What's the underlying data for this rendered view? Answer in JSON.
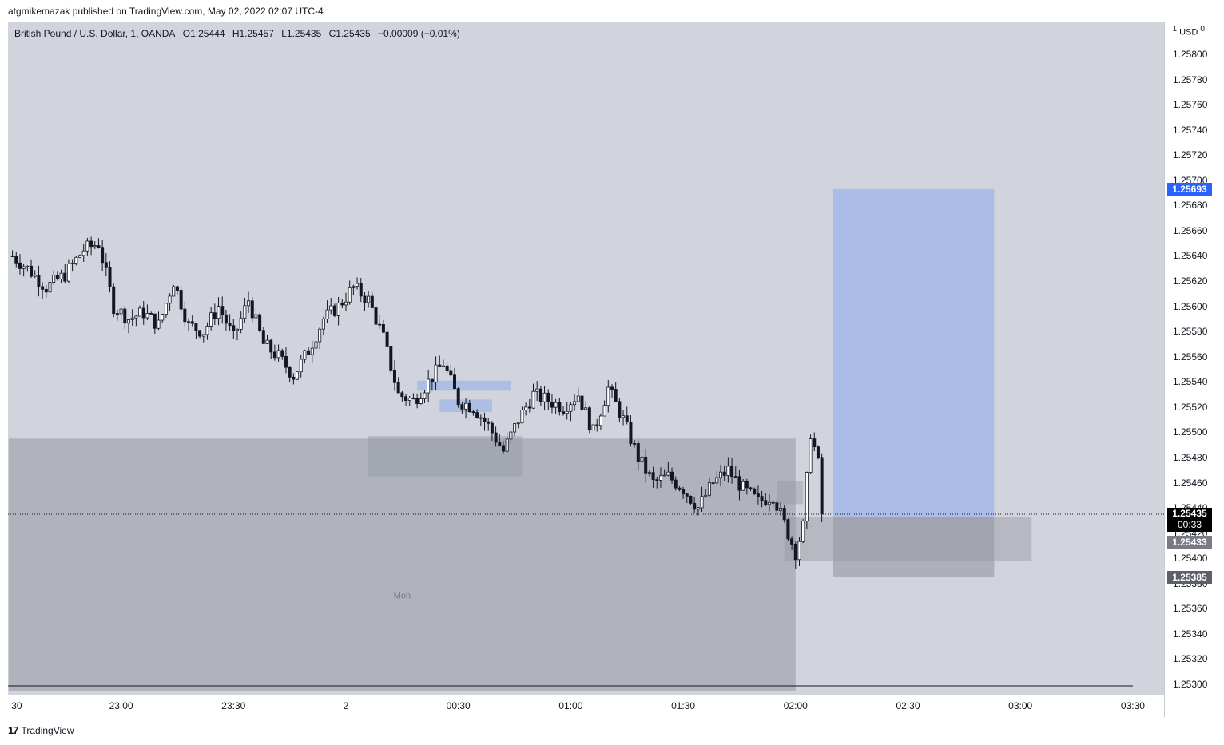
{
  "header": {
    "published_line": "atgmikemazak published on TradingView.com, May 02, 2022 02:07 UTC-4"
  },
  "legend": {
    "symbol": "British Pound / U.S. Dollar, 1, OANDA",
    "open": "O1.25444",
    "high": "H1.25457",
    "low": "L1.25435",
    "close": "C1.25435",
    "change": "−0.00009 (−0.01%)"
  },
  "price_axis": {
    "currency_prefix": "1",
    "currency": "USD",
    "currency_suffix": "0"
  },
  "price_labels": {
    "target": "1.25693",
    "current": "1.25435",
    "countdown": "00:33",
    "entry": "1.25433",
    "stop": "1.25385"
  },
  "session_label": "Mon",
  "footer": {
    "brand": "TradingView"
  },
  "colors": {
    "background": "#d1d4dc",
    "candle_up": "#ffffff",
    "candle_down": "#131722",
    "target_zone": "#a9bbe6",
    "stop_zone": "#9598a1",
    "target_label": "#2962ff",
    "current_label": "#000000",
    "grey_label": "#787b86"
  },
  "chart_data": {
    "type": "candlestick",
    "symbol": "GBPUSD",
    "timeframe": "1",
    "ylim": [
      1.2529,
      1.2581
    ],
    "y_ticks": [
      "1.25800",
      "1.25780",
      "1.25760",
      "1.25740",
      "1.25720",
      "1.25700",
      "1.25680",
      "1.25660",
      "1.25640",
      "1.25620",
      "1.25600",
      "1.25580",
      "1.25560",
      "1.25540",
      "1.25520",
      "1.25500",
      "1.25480",
      "1.25460",
      "1.25440",
      "1.25420",
      "1.25400",
      "1.25380",
      "1.25360",
      "1.25340",
      "1.25320",
      "1.25300"
    ],
    "x_ticks": [
      ":30",
      "23:00",
      "23:30",
      "2",
      "00:30",
      "01:00",
      "01:30",
      "02:00",
      "02:30",
      "03:00",
      "03:30"
    ],
    "x_tick_minutes": [
      -90,
      -60,
      -30,
      0,
      30,
      60,
      90,
      120,
      150,
      180,
      210
    ],
    "close_path": [
      [
        -89,
        1.2564
      ],
      [
        -85,
        1.2563
      ],
      [
        -80,
        1.25615
      ],
      [
        -75,
        1.25625
      ],
      [
        -70,
        1.25645
      ],
      [
        -66,
        1.2565
      ],
      [
        -62,
        1.256
      ],
      [
        -58,
        1.2559
      ],
      [
        -54,
        1.25595
      ],
      [
        -50,
        1.25585
      ],
      [
        -46,
        1.2562
      ],
      [
        -42,
        1.25585
      ],
      [
        -38,
        1.2558
      ],
      [
        -34,
        1.256
      ],
      [
        -30,
        1.25575
      ],
      [
        -26,
        1.25605
      ],
      [
        -22,
        1.2557
      ],
      [
        -18,
        1.2556
      ],
      [
        -14,
        1.25545
      ],
      [
        -10,
        1.25565
      ],
      [
        -6,
        1.2559
      ],
      [
        -2,
        1.256
      ],
      [
        2,
        1.25615
      ],
      [
        6,
        1.25605
      ],
      [
        10,
        1.25575
      ],
      [
        14,
        1.2553
      ],
      [
        18,
        1.25525
      ],
      [
        22,
        1.2554
      ],
      [
        26,
        1.25555
      ],
      [
        30,
        1.25525
      ],
      [
        34,
        1.2552
      ],
      [
        38,
        1.25505
      ],
      [
        42,
        1.25485
      ],
      [
        46,
        1.2551
      ],
      [
        50,
        1.2553
      ],
      [
        54,
        1.25525
      ],
      [
        58,
        1.2552
      ],
      [
        62,
        1.2553
      ],
      [
        66,
        1.255
      ],
      [
        70,
        1.25535
      ],
      [
        74,
        1.2551
      ],
      [
        78,
        1.2548
      ],
      [
        82,
        1.2546
      ],
      [
        86,
        1.25465
      ],
      [
        90,
        1.25455
      ],
      [
        94,
        1.2544
      ],
      [
        98,
        1.2546
      ],
      [
        102,
        1.2547
      ],
      [
        106,
        1.25455
      ],
      [
        110,
        1.25445
      ],
      [
        114,
        1.2545
      ],
      [
        118,
        1.2542
      ],
      [
        120,
        1.25405
      ],
      [
        122,
        1.25425
      ],
      [
        124,
        1.255
      ],
      [
        126,
        1.25475
      ],
      [
        127,
        1.25435
      ]
    ],
    "position_tool": {
      "entry": 1.25433,
      "target": 1.25693,
      "stop": 1.25385,
      "start_minute": 130,
      "end_minute": 173
    },
    "zones": [
      {
        "from_minute": -90,
        "to_minute": 120,
        "top": 1.25495,
        "bottom": 1.25295,
        "label": "Mon"
      },
      {
        "from_minute": 6,
        "to_minute": 47,
        "top": 1.25497,
        "bottom": 1.25465
      },
      {
        "from_minute": 115,
        "to_minute": 122,
        "top": 1.25461,
        "bottom": 1.25443
      },
      {
        "from_minute": 117,
        "to_minute": 183,
        "top": 1.25433,
        "bottom": 1.25398
      }
    ],
    "supply_boxes": [
      {
        "from_minute": 19,
        "to_minute": 44,
        "top": 1.25541,
        "bottom": 1.25533
      },
      {
        "from_minute": 25,
        "to_minute": 39,
        "top": 1.25526,
        "bottom": 1.25516
      }
    ]
  }
}
